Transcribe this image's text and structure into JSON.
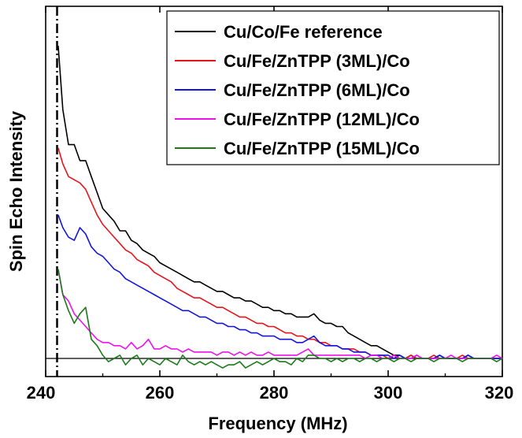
{
  "chart_data": {
    "type": "line",
    "title": "",
    "xlabel": "Frequency (MHz)",
    "ylabel": "Spin Echo Intensity",
    "xlim": [
      240,
      320
    ],
    "ylim": [
      0,
      1
    ],
    "x_ticks": [
      240,
      260,
      280,
      300,
      320
    ],
    "x_tick_labels": [
      "240",
      "260",
      "280",
      "300",
      "320"
    ],
    "y_ticks_labeled": false,
    "legend_position": "top-right",
    "baseline_y": 0,
    "vertical_line": {
      "x": 242,
      "style": "dash-dot"
    },
    "series": [
      {
        "name": "Cu/Co/Fe reference",
        "color": "#000000",
        "x": [
          242.2,
          243,
          244,
          245,
          246,
          247,
          248,
          249,
          250,
          251,
          252,
          253,
          254,
          255,
          256,
          257,
          258,
          259,
          260,
          261,
          262,
          263,
          264,
          265,
          266,
          267,
          268,
          269,
          270,
          271,
          272,
          273,
          274,
          275,
          276,
          277,
          278,
          279,
          280,
          281,
          282,
          283,
          284,
          285,
          286,
          287,
          288,
          289,
          290,
          291,
          292,
          293,
          294,
          295,
          296,
          297,
          298,
          299,
          300,
          301,
          302,
          303,
          304,
          305,
          306,
          307,
          308,
          309,
          310,
          311,
          312,
          313,
          314,
          315,
          316,
          317,
          318,
          319,
          320
        ],
        "y": [
          0.98,
          0.78,
          0.67,
          0.67,
          0.62,
          0.62,
          0.57,
          0.52,
          0.47,
          0.45,
          0.43,
          0.4,
          0.4,
          0.37,
          0.36,
          0.34,
          0.33,
          0.32,
          0.3,
          0.29,
          0.28,
          0.27,
          0.26,
          0.25,
          0.24,
          0.24,
          0.23,
          0.22,
          0.21,
          0.21,
          0.2,
          0.19,
          0.19,
          0.18,
          0.18,
          0.17,
          0.16,
          0.16,
          0.15,
          0.15,
          0.14,
          0.14,
          0.13,
          0.13,
          0.13,
          0.14,
          0.12,
          0.11,
          0.11,
          0.1,
          0.1,
          0.08,
          0.07,
          0.06,
          0.05,
          0.04,
          0.04,
          0.03,
          0.02,
          0.01,
          0.01,
          0.0,
          0.01,
          0.0,
          0.0,
          0.0,
          0.0,
          0.01,
          0.0,
          0.0,
          0.0,
          0.0,
          0.01,
          0.0,
          0.0,
          0.0,
          0.0,
          0.0,
          0.0
        ]
      },
      {
        "name": "Cu/Fe/ZnTPP (3ML)/Co",
        "color": "#e8141c",
        "x": [
          242.2,
          243,
          244,
          245,
          246,
          247,
          248,
          249,
          250,
          251,
          252,
          253,
          254,
          255,
          256,
          257,
          258,
          259,
          260,
          261,
          262,
          263,
          264,
          265,
          266,
          267,
          268,
          269,
          270,
          271,
          272,
          273,
          274,
          275,
          276,
          277,
          278,
          279,
          280,
          281,
          282,
          283,
          284,
          285,
          286,
          287,
          288,
          289,
          290,
          291,
          292,
          293,
          294,
          295,
          296,
          297,
          298,
          299,
          300,
          301,
          302,
          303,
          304,
          305,
          306,
          307,
          308,
          309,
          310,
          311,
          312,
          313,
          314,
          315,
          316,
          317,
          318,
          319,
          320
        ],
        "y": [
          0.66,
          0.61,
          0.57,
          0.56,
          0.55,
          0.53,
          0.49,
          0.45,
          0.42,
          0.4,
          0.38,
          0.36,
          0.34,
          0.33,
          0.31,
          0.3,
          0.29,
          0.27,
          0.26,
          0.25,
          0.24,
          0.22,
          0.21,
          0.2,
          0.19,
          0.19,
          0.18,
          0.17,
          0.16,
          0.16,
          0.15,
          0.14,
          0.13,
          0.13,
          0.12,
          0.11,
          0.11,
          0.1,
          0.1,
          0.09,
          0.08,
          0.08,
          0.07,
          0.07,
          0.06,
          0.06,
          0.05,
          0.05,
          0.04,
          0.04,
          0.03,
          0.03,
          0.03,
          0.02,
          0.02,
          0.01,
          0.01,
          0.01,
          0.0,
          0.01,
          0.0,
          0.0,
          0.01,
          0.0,
          0.0,
          0.0,
          0.01,
          0.0,
          0.0,
          0.0,
          0.0,
          0.01,
          0.0,
          0.0,
          0.0,
          0.0,
          0.0,
          0.0,
          0.0
        ]
      },
      {
        "name": "Cu/Fe/ZnTPP (6ML)/Co",
        "color": "#1414e0",
        "x": [
          242.2,
          243,
          244,
          245,
          246,
          247,
          248,
          249,
          250,
          251,
          252,
          253,
          254,
          255,
          256,
          257,
          258,
          259,
          260,
          261,
          262,
          263,
          264,
          265,
          266,
          267,
          268,
          269,
          270,
          271,
          272,
          273,
          274,
          275,
          276,
          277,
          278,
          279,
          280,
          281,
          282,
          283,
          284,
          285,
          286,
          287,
          288,
          289,
          290,
          291,
          292,
          293,
          294,
          295,
          296,
          297,
          298,
          299,
          300,
          301,
          302,
          303,
          304,
          305,
          306,
          307,
          308,
          309,
          310,
          311,
          312,
          313,
          314,
          315,
          316,
          317,
          318,
          319,
          320
        ],
        "y": [
          0.45,
          0.41,
          0.38,
          0.37,
          0.41,
          0.39,
          0.35,
          0.33,
          0.32,
          0.3,
          0.28,
          0.27,
          0.25,
          0.24,
          0.23,
          0.22,
          0.21,
          0.2,
          0.19,
          0.18,
          0.17,
          0.16,
          0.15,
          0.15,
          0.14,
          0.13,
          0.13,
          0.12,
          0.11,
          0.11,
          0.1,
          0.1,
          0.09,
          0.09,
          0.08,
          0.08,
          0.07,
          0.07,
          0.07,
          0.06,
          0.06,
          0.06,
          0.05,
          0.05,
          0.06,
          0.07,
          0.05,
          0.04,
          0.04,
          0.04,
          0.03,
          0.03,
          0.02,
          0.02,
          0.02,
          0.01,
          0.01,
          0.01,
          0.01,
          0.0,
          0.01,
          0.0,
          0.0,
          0.01,
          0.0,
          0.0,
          0.0,
          0.01,
          0.0,
          0.0,
          0.0,
          0.0,
          0.01,
          0.0,
          0.0,
          0.0,
          0.0,
          0.0,
          0.0
        ]
      },
      {
        "name": "Cu/Fe/ZnTPP (12ML)/Co",
        "color": "#ee11ee",
        "x": [
          242.2,
          243,
          244,
          245,
          246,
          247,
          248,
          249,
          250,
          251,
          252,
          253,
          254,
          255,
          256,
          257,
          258,
          259,
          260,
          261,
          262,
          263,
          264,
          265,
          266,
          267,
          268,
          269,
          270,
          271,
          272,
          273,
          274,
          275,
          276,
          277,
          278,
          279,
          280,
          281,
          282,
          283,
          284,
          285,
          286,
          287,
          288,
          289,
          290,
          291,
          292,
          293,
          294,
          295,
          296,
          297,
          298,
          299,
          300,
          301,
          302,
          303,
          304,
          305,
          306,
          307,
          308,
          309,
          310,
          311,
          312,
          313,
          314,
          315,
          316,
          317,
          318,
          319,
          320
        ],
        "y": [
          0.28,
          0.2,
          0.18,
          0.14,
          0.12,
          0.1,
          0.08,
          0.06,
          0.05,
          0.05,
          0.04,
          0.04,
          0.03,
          0.05,
          0.03,
          0.04,
          0.06,
          0.03,
          0.03,
          0.04,
          0.03,
          0.03,
          0.02,
          0.03,
          0.02,
          0.02,
          0.02,
          0.02,
          0.01,
          0.02,
          0.02,
          0.01,
          0.02,
          0.01,
          0.02,
          0.01,
          0.01,
          0.02,
          0.01,
          0.01,
          0.01,
          0.01,
          0.01,
          0.02,
          0.03,
          0.01,
          0.01,
          0.01,
          0.01,
          0.01,
          0.01,
          0.01,
          0.01,
          0.01,
          0.0,
          0.01,
          0.01,
          0.0,
          0.0,
          0.01,
          0.0,
          0.0,
          0.0,
          0.01,
          0.0,
          0.0,
          0.0,
          0.0,
          0.0,
          0.01,
          0.0,
          0.0,
          0.0,
          0.0,
          0.0,
          0.0,
          0.0,
          0.01,
          0.0
        ]
      },
      {
        "name": "Cu/Fe/ZnTPP (15ML)/Co",
        "color": "#1a7a1a",
        "x": [
          242.2,
          243,
          244,
          245,
          246,
          247,
          248,
          249,
          250,
          251,
          252,
          253,
          254,
          255,
          256,
          257,
          258,
          259,
          260,
          261,
          262,
          263,
          264,
          265,
          266,
          267,
          268,
          269,
          270,
          271,
          272,
          273,
          274,
          275,
          276,
          277,
          278,
          279,
          280,
          281,
          282,
          283,
          284,
          285,
          286,
          287,
          288,
          289,
          290,
          291,
          292,
          293,
          294,
          295,
          296,
          297,
          298,
          299,
          300,
          301,
          302,
          303,
          304,
          305,
          306,
          307,
          308,
          309,
          310,
          311,
          312,
          313,
          314,
          315,
          316,
          317,
          318,
          319,
          320
        ],
        "y": [
          0.28,
          0.2,
          0.15,
          0.11,
          0.14,
          0.16,
          0.06,
          0.04,
          0.01,
          -0.01,
          0.0,
          0.01,
          -0.02,
          0.0,
          0.01,
          -0.02,
          0.0,
          -0.01,
          -0.02,
          0.0,
          -0.01,
          -0.02,
          0.01,
          -0.01,
          -0.02,
          -0.01,
          -0.02,
          -0.01,
          -0.02,
          -0.03,
          -0.02,
          -0.02,
          -0.01,
          -0.03,
          -0.02,
          -0.01,
          -0.02,
          -0.01,
          0.0,
          -0.01,
          -0.01,
          -0.02,
          0.0,
          -0.01,
          0.01,
          0.01,
          0.0,
          0.0,
          -0.01,
          0.0,
          -0.01,
          0.0,
          0.0,
          -0.01,
          0.0,
          0.0,
          -0.01,
          0.0,
          0.0,
          -0.01,
          0.0,
          0.0,
          -0.01,
          0.0,
          0.0,
          0.0,
          -0.01,
          0.0,
          0.0,
          0.0,
          0.0,
          -0.01,
          0.0,
          0.0,
          0.0,
          0.0,
          0.0,
          -0.01,
          0.0
        ]
      }
    ]
  }
}
